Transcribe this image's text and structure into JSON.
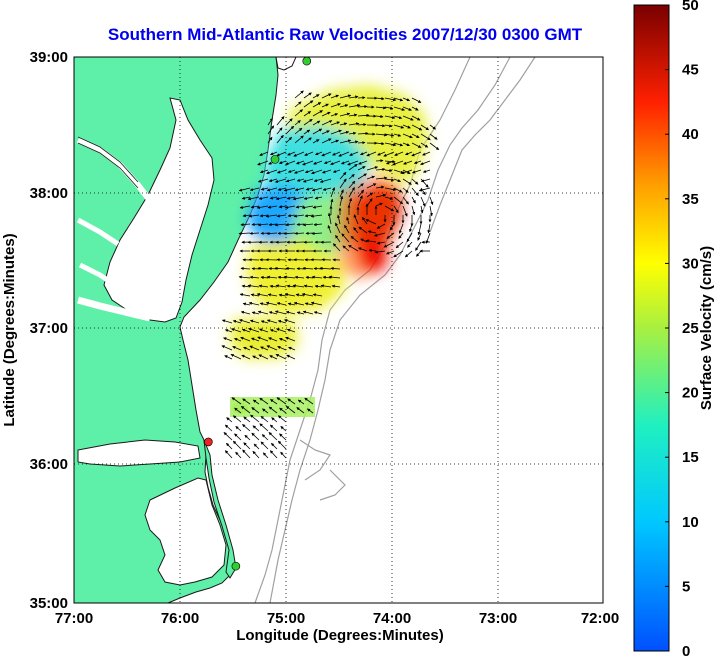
{
  "title": "Southern Mid-Atlantic Raw Velocities 2007/12/30 0300 GMT",
  "axes": {
    "xlabel": "Longitude (Degrees:Minutes)",
    "ylabel": "Latitude (Degrees:Minutes)",
    "x_ticks": [
      "77:00",
      "76:00",
      "75:00",
      "74:00",
      "73:00",
      "72:00"
    ],
    "y_ticks": [
      "39:00",
      "38:00",
      "37:00",
      "36:00",
      "35:00"
    ],
    "xlim_deg_west": [
      77,
      72
    ],
    "ylim_deg_north": [
      35,
      39
    ],
    "grid": "dotted"
  },
  "colorbar": {
    "label": "Surface Velocity (cm/s)",
    "ticks": [
      "50",
      "45",
      "40",
      "35",
      "30",
      "25",
      "20",
      "15",
      "10",
      "5",
      "0"
    ],
    "range": [
      0,
      50
    ],
    "colormap": "jet",
    "placement": "right"
  },
  "colors": {
    "land": "#5ef0a8",
    "water": "#ffffff",
    "bathymetry_contour": "#a0a0a0",
    "title": "#0000ee",
    "station_active": "#33cc33",
    "station_inactive": "#ee2222"
  },
  "chart_data": {
    "type": "heatmap",
    "title": "Southern Mid-Atlantic Raw Velocities 2007/12/30 0300 GMT",
    "xlabel": "Longitude (Degrees:Minutes)",
    "ylabel": "Latitude (Degrees:Minutes)",
    "colorbar_label": "Surface Velocity (cm/s)",
    "value_range": [
      0,
      50
    ],
    "velocity_regions": [
      {
        "lon": -74.3,
        "lat": 38.55,
        "speed": 27
      },
      {
        "lon": -75.0,
        "lat": 38.3,
        "speed": 12
      },
      {
        "lon": -75.3,
        "lat": 37.85,
        "speed": 8
      },
      {
        "lon": -74.7,
        "lat": 37.8,
        "speed": 18
      },
      {
        "lon": -74.15,
        "lat": 37.75,
        "speed": 42
      },
      {
        "lon": -74.05,
        "lat": 37.85,
        "speed": 48
      },
      {
        "lon": -74.9,
        "lat": 37.3,
        "speed": 24
      },
      {
        "lon": -75.4,
        "lat": 36.9,
        "speed": 25
      },
      {
        "lon": -75.05,
        "lat": 36.45,
        "speed": 18
      }
    ],
    "stations": [
      {
        "lon": -74.8,
        "lat": 38.97,
        "status": "active"
      },
      {
        "lon": -75.1,
        "lat": 38.25,
        "status": "active"
      },
      {
        "lon": -75.73,
        "lat": 36.18,
        "status": "inactive"
      },
      {
        "lon": -75.47,
        "lat": 35.27,
        "status": "active"
      }
    ]
  }
}
